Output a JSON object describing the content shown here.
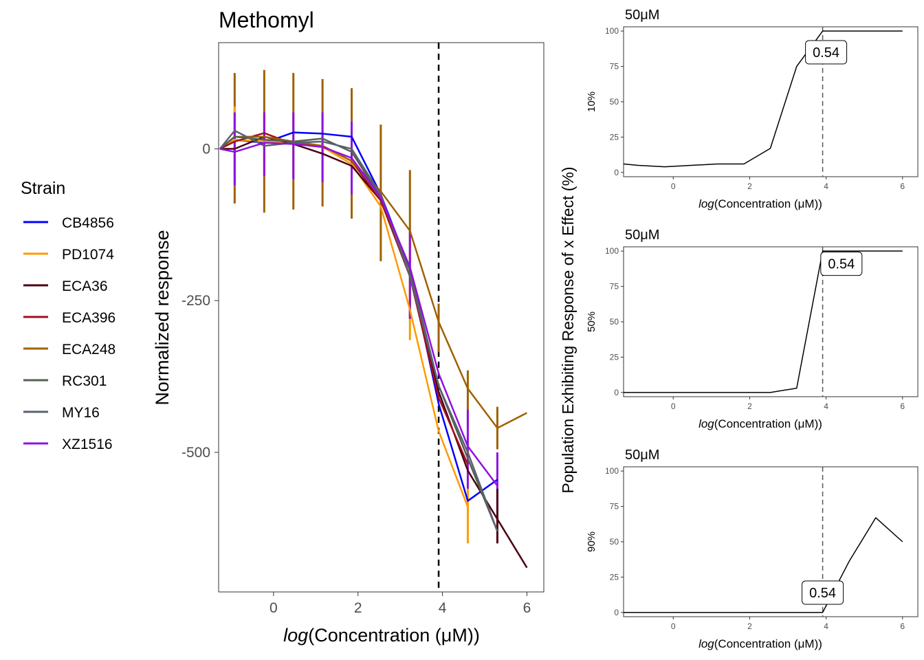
{
  "legend": {
    "title": "Strain",
    "entries": [
      "CB4856",
      "PD1074",
      "ECA36",
      "ECA396",
      "ECA248",
      "RC301",
      "MY16",
      "XZ1516"
    ]
  },
  "ec_label": "0.54",
  "chart_data": [
    {
      "type": "line",
      "title": "Methomyl",
      "xlabel_italic": "log",
      "xlabel_rest": "(Concentration (μM))",
      "ylabel": "Normalized response",
      "xlim": [
        -1.3,
        6.4
      ],
      "ylim": [
        -730,
        175
      ],
      "xticks": [
        0,
        2,
        4,
        6
      ],
      "yticks": [
        0,
        -250,
        -500
      ],
      "vline_x": 3.91,
      "x": [
        -1.27,
        -0.92,
        -0.22,
        0.47,
        1.16,
        1.85,
        2.54,
        3.23,
        3.91,
        4.6,
        5.3,
        6.0
      ],
      "series": [
        {
          "name": "CB4856",
          "color": "#0000ff",
          "values": [
            0,
            15,
            10,
            27,
            25,
            20,
            -75,
            -200,
            -420,
            -580,
            -545,
            null
          ]
        },
        {
          "name": "PD1074",
          "color": "#ff9a00",
          "values": [
            0,
            15,
            12,
            10,
            3,
            -25,
            -95,
            -265,
            -465,
            -590,
            null,
            null
          ]
        },
        {
          "name": "ECA36",
          "color": "#4a0010",
          "values": [
            0,
            0,
            20,
            8,
            -8,
            -28,
            -85,
            -210,
            -400,
            -530,
            -610,
            -690
          ]
        },
        {
          "name": "ECA396",
          "color": "#a01020",
          "values": [
            0,
            12,
            26,
            8,
            5,
            -20,
            -85,
            -210,
            -410,
            -520,
            null,
            null
          ]
        },
        {
          "name": "ECA248",
          "color": "#a06000",
          "values": [
            0,
            20,
            20,
            12,
            5,
            -20,
            -70,
            -135,
            -285,
            -395,
            -460,
            -435
          ]
        },
        {
          "name": "RC301",
          "color": "#556050",
          "values": [
            0,
            20,
            15,
            12,
            17,
            -5,
            -80,
            -200,
            -390,
            -510,
            -630,
            null
          ]
        },
        {
          "name": "MY16",
          "color": "#5a6070",
          "values": [
            0,
            30,
            5,
            10,
            12,
            0,
            -75,
            -210,
            -390,
            -500,
            -630,
            null
          ]
        },
        {
          "name": "XZ1516",
          "color": "#9010e0",
          "values": [
            0,
            -5,
            10,
            8,
            3,
            -15,
            -80,
            -195,
            -370,
            -490,
            -555,
            null
          ]
        }
      ],
      "error_bars": [
        {
          "series": "ECA248",
          "x": [
            -0.92,
            -0.22,
            0.47,
            1.16,
            1.85,
            2.54,
            3.23,
            3.91,
            4.6,
            5.3
          ],
          "low": [
            -90,
            -105,
            -100,
            -95,
            -115,
            -185,
            -280,
            -335,
            -460,
            -495
          ],
          "high": [
            125,
            130,
            125,
            115,
            100,
            40,
            -35,
            -255,
            -365,
            -425
          ]
        },
        {
          "series": "PD1074",
          "x": [
            -0.92,
            3.23,
            4.6
          ],
          "low": [
            -50,
            -315,
            -650
          ],
          "high": [
            70,
            -220,
            -560
          ]
        },
        {
          "series": "XZ1516",
          "x": [
            -0.92,
            -0.22,
            0.47,
            1.16,
            1.85,
            3.23,
            4.6,
            5.3
          ],
          "low": [
            -60,
            -45,
            -50,
            -55,
            -75,
            -280,
            -560,
            -610
          ],
          "high": [
            60,
            60,
            60,
            60,
            45,
            -135,
            -430,
            -500
          ]
        },
        {
          "series": "ECA36",
          "x": [
            5.3
          ],
          "low": [
            -650
          ],
          "high": [
            -560
          ]
        }
      ]
    },
    {
      "type": "line",
      "title": "50μM",
      "ylabel": "10%",
      "xlabel_italic": "log",
      "xlabel_rest": "(Concentration (μM))",
      "xlim": [
        -1.3,
        6.4
      ],
      "ylim": [
        -3,
        103
      ],
      "xticks": [
        0,
        2,
        4,
        6
      ],
      "yticks": [
        0,
        25,
        50,
        75,
        100
      ],
      "vline_x": 3.91,
      "label_x": 4.0,
      "label_y": 85,
      "x": [
        -1.3,
        -0.92,
        -0.22,
        0.47,
        1.16,
        1.85,
        2.54,
        3.23,
        3.91,
        4.6,
        5.3,
        6.0
      ],
      "y": [
        6,
        5,
        4,
        5,
        6,
        6,
        17,
        75,
        100,
        100,
        100,
        100
      ]
    },
    {
      "type": "line",
      "title": "50μM",
      "ylabel": "50%",
      "xlabel_italic": "log",
      "xlabel_rest": "(Concentration (μM))",
      "xlim": [
        -1.3,
        6.4
      ],
      "ylim": [
        -3,
        103
      ],
      "xticks": [
        0,
        2,
        4,
        6
      ],
      "yticks": [
        0,
        25,
        50,
        75,
        100
      ],
      "vline_x": 3.91,
      "label_x": 4.4,
      "label_y": 91,
      "x": [
        -1.3,
        -0.92,
        -0.22,
        0.47,
        1.16,
        1.85,
        2.54,
        3.23,
        3.91,
        4.6,
        5.3,
        6.0
      ],
      "y": [
        0,
        0,
        0,
        0,
        0,
        0,
        0,
        3,
        100,
        100,
        100,
        100
      ]
    },
    {
      "type": "line",
      "title": "50μM",
      "ylabel": "90%",
      "xlabel_italic": "log",
      "xlabel_rest": "(Concentration (μM))",
      "xlim": [
        -1.3,
        6.4
      ],
      "ylim": [
        -3,
        103
      ],
      "xticks": [
        0,
        2,
        4,
        6
      ],
      "yticks": [
        0,
        25,
        50,
        75,
        100
      ],
      "vline_x": 3.91,
      "label_x": 3.91,
      "label_y": 14,
      "x": [
        -1.3,
        -0.92,
        -0.22,
        0.47,
        1.16,
        1.85,
        2.54,
        3.23,
        3.91,
        4.6,
        5.3,
        6.0
      ],
      "y": [
        0,
        0,
        0,
        0,
        0,
        0,
        0,
        0,
        0,
        36,
        67,
        50
      ]
    }
  ],
  "shared_ylabel": "Population Exhibiting Response of x Effect (%)"
}
